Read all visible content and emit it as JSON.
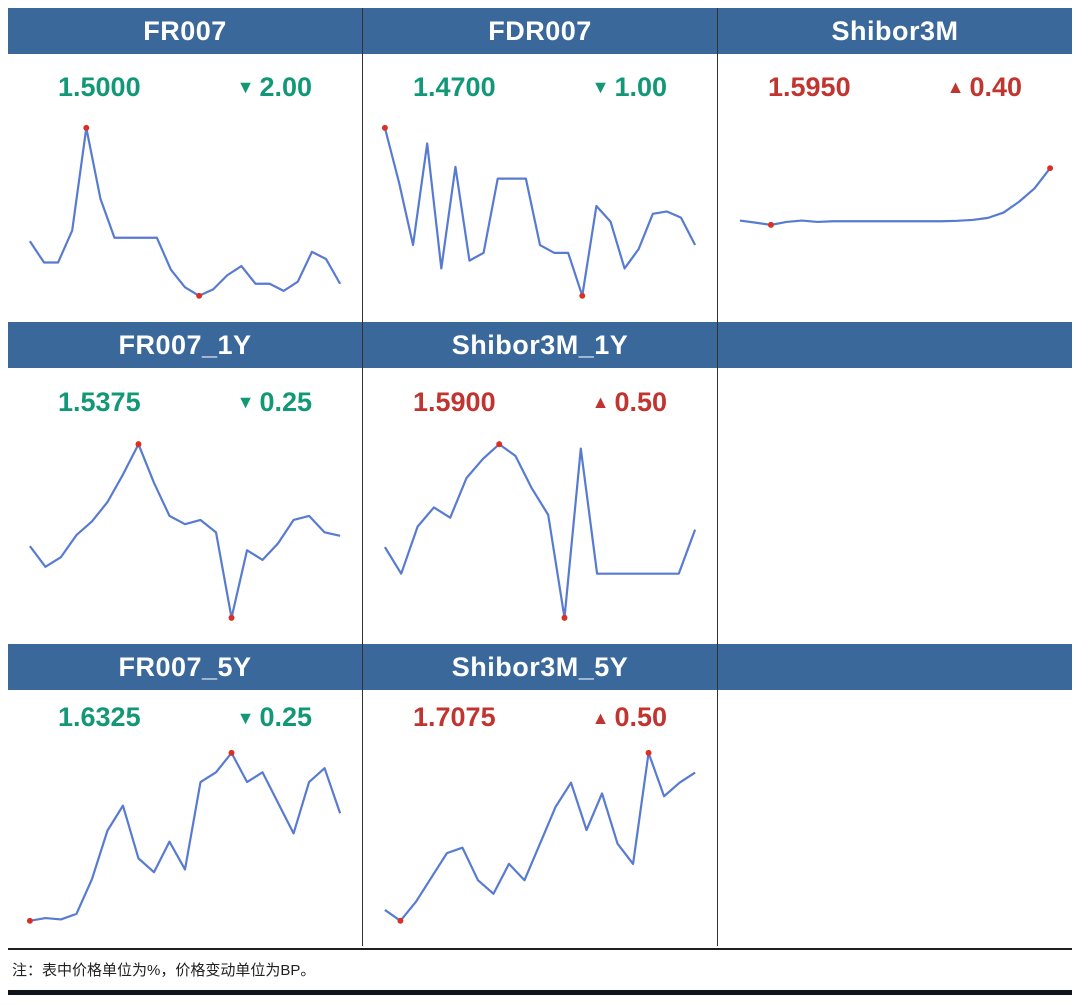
{
  "style": {
    "header_bg": "#3a689b",
    "up_color": "#c13531",
    "down_color": "#139877",
    "line_color": "#587bd2",
    "dot_color": "#dc2f23"
  },
  "cells": [
    {
      "title": "FR007",
      "value": "1.5000",
      "arrow": "▼",
      "change": "2.00",
      "direction": "down"
    },
    {
      "title": "FDR007",
      "value": "1.4700",
      "arrow": "▼",
      "change": "1.00",
      "direction": "down"
    },
    {
      "title": "Shibor3M",
      "value": "1.5950",
      "arrow": "▲",
      "change": "0.40",
      "direction": "up"
    },
    {
      "title": "FR007_1Y",
      "value": "1.5375",
      "arrow": "▼",
      "change": "0.25",
      "direction": "down"
    },
    {
      "title": "Shibor3M_1Y",
      "value": "1.5900",
      "arrow": "▲",
      "change": "0.50",
      "direction": "up"
    },
    {
      "title": "FR007_5Y",
      "value": "1.6325",
      "arrow": "▼",
      "change": "0.25",
      "direction": "down"
    },
    {
      "title": "Shibor3M_5Y",
      "value": "1.7075",
      "arrow": "▲",
      "change": "0.50",
      "direction": "up"
    }
  ],
  "note": {
    "text": "注：表中价格单位为%，价格变动单位为BP。"
  },
  "chart_data": {
    "type": "line",
    "units": {
      "price": "%",
      "change": "BP"
    },
    "legend": "red dots mark period max and min",
    "charts": [
      {
        "name": "FR007",
        "current": 1.5,
        "change_bp": -2.0,
        "values": [
          1.56,
          1.53,
          1.53,
          1.575,
          1.72,
          1.62,
          1.565,
          1.565,
          1.565,
          1.565,
          1.52,
          1.495,
          1.483,
          1.492,
          1.512,
          1.525,
          1.5,
          1.5,
          1.49,
          1.503,
          1.545,
          1.535,
          1.5
        ]
      },
      {
        "name": "FDR007",
        "current": 1.47,
        "change_bp": -1.0,
        "values": [
          1.62,
          1.55,
          1.47,
          1.6,
          1.44,
          1.57,
          1.45,
          1.46,
          1.555,
          1.555,
          1.555,
          1.47,
          1.46,
          1.46,
          1.405,
          1.52,
          1.5,
          1.44,
          1.465,
          1.51,
          1.513,
          1.505,
          1.47
        ]
      },
      {
        "name": "Shibor3M",
        "current": 1.595,
        "change_bp": 0.4,
        "ylim": [
          1.5,
          1.625
        ],
        "values": [
          1.556,
          1.5545,
          1.5528,
          1.555,
          1.556,
          1.555,
          1.5555,
          1.5555,
          1.5555,
          1.5555,
          1.5555,
          1.5555,
          1.5555,
          1.5555,
          1.5558,
          1.5565,
          1.558,
          1.562,
          1.57,
          1.58,
          1.595
        ]
      },
      {
        "name": "FR007_1Y",
        "current": 1.5375,
        "change_bp": -0.25,
        "values": [
          1.53,
          1.515,
          1.522,
          1.538,
          1.548,
          1.562,
          1.582,
          1.604,
          1.576,
          1.552,
          1.546,
          1.549,
          1.54,
          1.478,
          1.527,
          1.52,
          1.532,
          1.549,
          1.552,
          1.54,
          1.5375
        ]
      },
      {
        "name": "Shibor3M_1Y",
        "current": 1.59,
        "change_bp": 0.5,
        "values": [
          1.578,
          1.56,
          1.592,
          1.605,
          1.598,
          1.625,
          1.638,
          1.648,
          1.64,
          1.618,
          1.6,
          1.53,
          1.645,
          1.56,
          1.56,
          1.56,
          1.56,
          1.56,
          1.56,
          1.59
        ]
      },
      {
        "name": "FR007_5Y",
        "current": 1.6325,
        "change_bp": -0.25,
        "values": [
          1.555,
          1.557,
          1.556,
          1.56,
          1.585,
          1.62,
          1.638,
          1.6,
          1.59,
          1.612,
          1.592,
          1.655,
          1.662,
          1.676,
          1.655,
          1.662,
          1.64,
          1.618,
          1.655,
          1.665,
          1.6325
        ]
      },
      {
        "name": "Shibor3M_5Y",
        "current": 1.7075,
        "change_bp": 0.5,
        "values": [
          1.606,
          1.598,
          1.612,
          1.63,
          1.648,
          1.652,
          1.628,
          1.618,
          1.64,
          1.628,
          1.655,
          1.682,
          1.7,
          1.665,
          1.692,
          1.655,
          1.64,
          1.722,
          1.69,
          1.7,
          1.7075
        ]
      }
    ]
  }
}
